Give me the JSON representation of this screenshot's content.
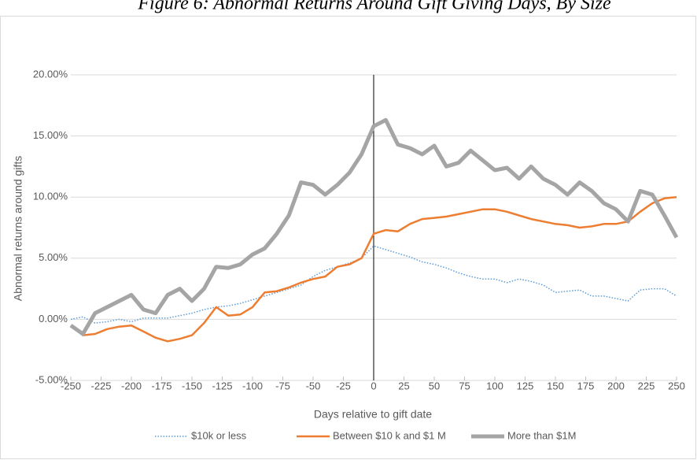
{
  "chart_data": {
    "type": "line",
    "title": "Figure 6: Abnormal Returns Around Gift Giving Days, By Size",
    "x_label": "Days relative to  gift date",
    "y_label": "Abnormal returns around gifts",
    "x": [
      -250,
      -240,
      -230,
      -220,
      -210,
      -200,
      -190,
      -180,
      -170,
      -160,
      -150,
      -140,
      -130,
      -120,
      -110,
      -100,
      -90,
      -80,
      -70,
      -60,
      -50,
      -40,
      -30,
      -20,
      -10,
      0,
      10,
      20,
      30,
      40,
      50,
      60,
      70,
      80,
      90,
      100,
      110,
      120,
      130,
      140,
      150,
      160,
      170,
      180,
      190,
      200,
      210,
      220,
      230,
      240,
      250
    ],
    "series": [
      {
        "name": "$10k or less",
        "color": "#5b9bd5",
        "style": "dotted",
        "values": [
          0,
          0.2,
          -0.3,
          -0.2,
          0,
          -0.2,
          0.1,
          0.1,
          0.1,
          0.3,
          0.5,
          0.8,
          1.0,
          1.1,
          1.3,
          1.6,
          1.9,
          2.2,
          2.5,
          2.8,
          3.5,
          4.0,
          4.3,
          4.6,
          5.0,
          6.0,
          5.7,
          5.4,
          5.1,
          4.7,
          4.5,
          4.2,
          3.8,
          3.5,
          3.3,
          3.3,
          3.0,
          3.3,
          3.1,
          2.8,
          2.2,
          2.3,
          2.4,
          1.9,
          1.9,
          1.7,
          1.5,
          2.4,
          2.5,
          2.5,
          1.9
        ]
      },
      {
        "name": "Between $10 k and $1 M",
        "color": "#ed7d31",
        "style": "solid",
        "values": [
          -0.5,
          -1.3,
          -1.2,
          -0.8,
          -0.6,
          -0.5,
          -1.0,
          -1.5,
          -1.8,
          -1.6,
          -1.3,
          -0.3,
          1.0,
          0.3,
          0.4,
          1.0,
          2.2,
          2.3,
          2.6,
          3.0,
          3.3,
          3.5,
          4.3,
          4.5,
          5.0,
          7.0,
          7.3,
          7.2,
          7.8,
          8.2,
          8.3,
          8.4,
          8.6,
          8.8,
          9.0,
          9.0,
          8.8,
          8.5,
          8.2,
          8.0,
          7.8,
          7.7,
          7.5,
          7.6,
          7.8,
          7.8,
          8.0,
          8.8,
          9.5,
          9.9,
          10.0
        ]
      },
      {
        "name": "More than $1M",
        "color": "#a5a5a5",
        "style": "solid",
        "values": [
          -0.5,
          -1.2,
          0.5,
          1.0,
          1.5,
          2.0,
          0.8,
          0.5,
          2.0,
          2.5,
          1.5,
          2.5,
          4.3,
          4.2,
          4.5,
          5.3,
          5.8,
          7.0,
          8.5,
          11.2,
          11.0,
          10.2,
          11.0,
          12.0,
          13.5,
          15.8,
          16.3,
          14.3,
          14.0,
          13.5,
          14.2,
          12.5,
          12.8,
          13.8,
          13.0,
          12.2,
          12.4,
          11.5,
          12.5,
          11.5,
          11.0,
          10.2,
          11.2,
          10.5,
          9.5,
          9.0,
          8.0,
          10.5,
          10.2,
          8.5,
          6.7
        ]
      }
    ],
    "xlim": [
      -250,
      250
    ],
    "xticks": [
      -250,
      -225,
      -200,
      -175,
      -150,
      -125,
      -100,
      -75,
      -50,
      -25,
      0,
      25,
      50,
      75,
      100,
      125,
      150,
      175,
      200,
      225,
      250
    ],
    "ylim": [
      -5,
      20
    ],
    "yticks": [
      {
        "value": -5,
        "label": "-5.00%"
      },
      {
        "value": 0,
        "label": "0.00%"
      },
      {
        "value": 5,
        "label": "5.00%"
      },
      {
        "value": 10,
        "label": "10.00%"
      },
      {
        "value": 15,
        "label": "15.00%"
      },
      {
        "value": 20,
        "label": "20.00%"
      }
    ],
    "grid": true,
    "legend": "bottom"
  }
}
